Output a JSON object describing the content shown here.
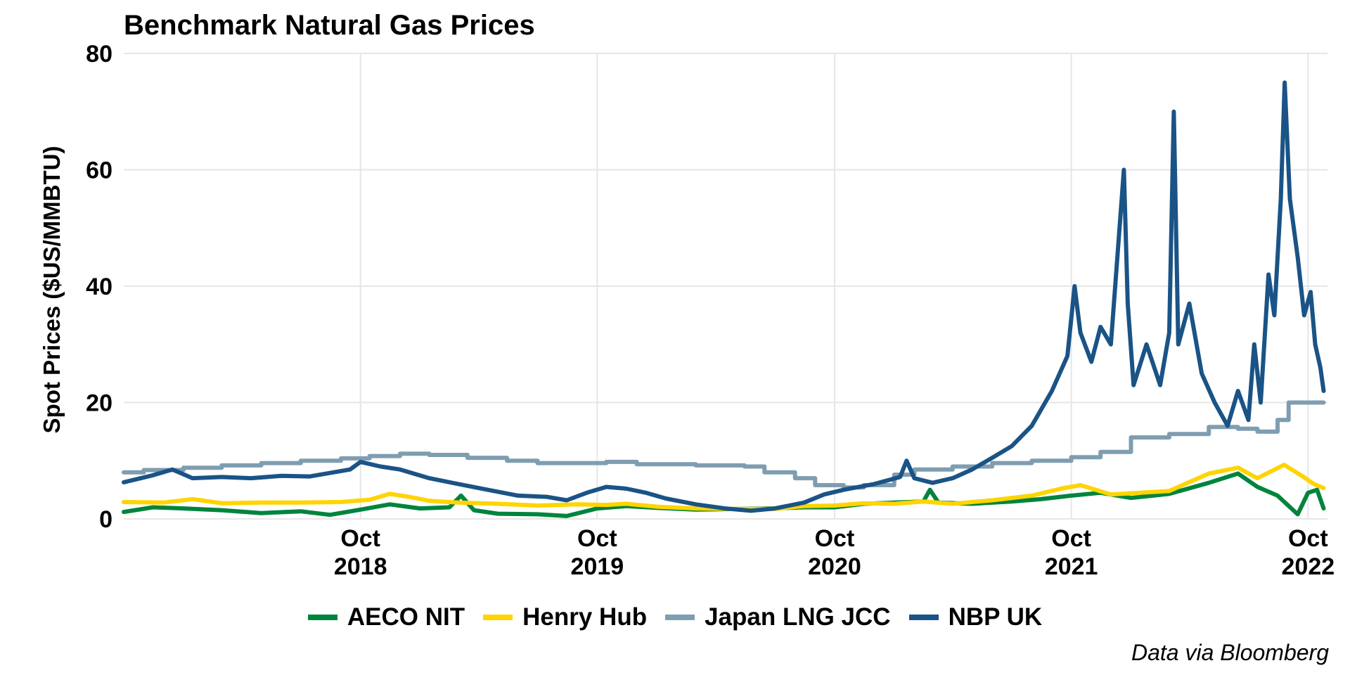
{
  "chart_data": {
    "type": "line",
    "title": "Benchmark Natural Gas Prices",
    "ylabel": "Spot Prices ($US/MMBTU)",
    "xlabel": "",
    "ylim": [
      0,
      80
    ],
    "yticks": [
      0,
      20,
      40,
      60,
      80
    ],
    "xlim": [
      "2017-10-01",
      "2022-10-31"
    ],
    "xticks": [
      {
        "date": "2018-10-01",
        "label": "Oct\n2018"
      },
      {
        "date": "2019-10-01",
        "label": "Oct\n2019"
      },
      {
        "date": "2020-10-01",
        "label": "Oct\n2020"
      },
      {
        "date": "2021-10-01",
        "label": "Oct\n2021"
      },
      {
        "date": "2022-10-01",
        "label": "Oct\n2022"
      }
    ],
    "grid": true,
    "legend_position": "bottom",
    "caption": "Data via Bloomberg",
    "series": [
      {
        "name": "AECO NIT",
        "color": "#00843D",
        "step": false,
        "points": [
          [
            "2017-10-01",
            1.2
          ],
          [
            "2017-11-15",
            2.0
          ],
          [
            "2018-01-01",
            1.8
          ],
          [
            "2018-03-01",
            1.5
          ],
          [
            "2018-05-01",
            1.0
          ],
          [
            "2018-07-01",
            1.3
          ],
          [
            "2018-08-15",
            0.7
          ],
          [
            "2018-10-01",
            1.6
          ],
          [
            "2018-11-15",
            2.5
          ],
          [
            "2019-01-01",
            1.8
          ],
          [
            "2019-02-15",
            2.0
          ],
          [
            "2019-03-05",
            4.0
          ],
          [
            "2019-03-25",
            1.5
          ],
          [
            "2019-05-01",
            0.9
          ],
          [
            "2019-07-01",
            0.8
          ],
          [
            "2019-08-15",
            0.5
          ],
          [
            "2019-10-01",
            1.8
          ],
          [
            "2019-11-15",
            2.2
          ],
          [
            "2020-01-01",
            1.9
          ],
          [
            "2020-03-01",
            1.6
          ],
          [
            "2020-05-01",
            1.7
          ],
          [
            "2020-07-01",
            1.8
          ],
          [
            "2020-08-15",
            2.0
          ],
          [
            "2020-10-01",
            2.0
          ],
          [
            "2020-11-15",
            2.6
          ],
          [
            "2021-01-01",
            2.8
          ],
          [
            "2021-02-15",
            3.0
          ],
          [
            "2021-02-25",
            5.0
          ],
          [
            "2021-03-10",
            2.8
          ],
          [
            "2021-05-01",
            2.6
          ],
          [
            "2021-07-01",
            3.0
          ],
          [
            "2021-08-15",
            3.4
          ],
          [
            "2021-10-01",
            4.0
          ],
          [
            "2021-11-15",
            4.5
          ],
          [
            "2022-01-01",
            3.6
          ],
          [
            "2022-03-01",
            4.3
          ],
          [
            "2022-05-01",
            6.2
          ],
          [
            "2022-06-15",
            7.8
          ],
          [
            "2022-07-15",
            5.5
          ],
          [
            "2022-08-15",
            4.0
          ],
          [
            "2022-09-15",
            0.8
          ],
          [
            "2022-10-01",
            4.5
          ],
          [
            "2022-10-15",
            5.0
          ],
          [
            "2022-10-25",
            1.8
          ]
        ]
      },
      {
        "name": "Henry Hub",
        "color": "#FFD400",
        "step": false,
        "points": [
          [
            "2017-10-01",
            2.9
          ],
          [
            "2017-12-01",
            2.8
          ],
          [
            "2018-01-15",
            3.4
          ],
          [
            "2018-03-01",
            2.7
          ],
          [
            "2018-05-01",
            2.8
          ],
          [
            "2018-07-01",
            2.8
          ],
          [
            "2018-09-01",
            2.9
          ],
          [
            "2018-10-15",
            3.3
          ],
          [
            "2018-11-15",
            4.3
          ],
          [
            "2018-12-15",
            3.8
          ],
          [
            "2019-01-15",
            3.1
          ],
          [
            "2019-03-01",
            2.8
          ],
          [
            "2019-05-01",
            2.6
          ],
          [
            "2019-07-01",
            2.3
          ],
          [
            "2019-09-01",
            2.5
          ],
          [
            "2019-10-15",
            2.4
          ],
          [
            "2019-11-15",
            2.6
          ],
          [
            "2020-01-01",
            2.1
          ],
          [
            "2020-03-01",
            1.8
          ],
          [
            "2020-05-01",
            1.7
          ],
          [
            "2020-07-01",
            1.7
          ],
          [
            "2020-08-15",
            2.2
          ],
          [
            "2020-10-01",
            2.3
          ],
          [
            "2020-11-15",
            2.7
          ],
          [
            "2021-01-01",
            2.6
          ],
          [
            "2021-02-15",
            3.0
          ],
          [
            "2021-04-01",
            2.6
          ],
          [
            "2021-06-01",
            3.2
          ],
          [
            "2021-08-01",
            4.0
          ],
          [
            "2021-09-15",
            5.2
          ],
          [
            "2021-10-15",
            5.8
          ],
          [
            "2021-12-01",
            4.2
          ],
          [
            "2022-01-15",
            4.5
          ],
          [
            "2022-03-01",
            4.8
          ],
          [
            "2022-05-01",
            7.8
          ],
          [
            "2022-06-15",
            8.8
          ],
          [
            "2022-07-15",
            7.0
          ],
          [
            "2022-08-25",
            9.3
          ],
          [
            "2022-09-20",
            7.5
          ],
          [
            "2022-10-10",
            6.0
          ],
          [
            "2022-10-25",
            5.3
          ]
        ]
      },
      {
        "name": "Japan LNG JCC",
        "color": "#7F9DB0",
        "step": true,
        "points": [
          [
            "2017-10-01",
            8.0
          ],
          [
            "2017-11-01",
            8.4
          ],
          [
            "2018-01-01",
            8.8
          ],
          [
            "2018-03-01",
            9.2
          ],
          [
            "2018-05-01",
            9.6
          ],
          [
            "2018-07-01",
            10.0
          ],
          [
            "2018-09-01",
            10.4
          ],
          [
            "2018-10-15",
            10.8
          ],
          [
            "2018-12-01",
            11.2
          ],
          [
            "2019-01-15",
            11.0
          ],
          [
            "2019-03-15",
            10.5
          ],
          [
            "2019-05-15",
            10.0
          ],
          [
            "2019-07-01",
            9.6
          ],
          [
            "2019-10-15",
            9.8
          ],
          [
            "2019-12-01",
            9.4
          ],
          [
            "2020-03-01",
            9.2
          ],
          [
            "2020-05-15",
            9.0
          ],
          [
            "2020-06-15",
            8.0
          ],
          [
            "2020-08-01",
            7.0
          ],
          [
            "2020-09-01",
            5.8
          ],
          [
            "2020-10-15",
            5.4
          ],
          [
            "2020-11-15",
            5.8
          ],
          [
            "2021-01-01",
            7.6
          ],
          [
            "2021-02-01",
            8.5
          ],
          [
            "2021-04-01",
            9.0
          ],
          [
            "2021-06-01",
            9.6
          ],
          [
            "2021-08-01",
            10.0
          ],
          [
            "2021-10-01",
            10.6
          ],
          [
            "2021-11-15",
            11.5
          ],
          [
            "2022-01-01",
            14.0
          ],
          [
            "2022-03-01",
            14.6
          ],
          [
            "2022-05-01",
            15.8
          ],
          [
            "2022-06-15",
            15.5
          ],
          [
            "2022-07-15",
            15.0
          ],
          [
            "2022-08-15",
            17.0
          ],
          [
            "2022-09-01",
            20.0
          ],
          [
            "2022-10-25",
            20.0
          ]
        ]
      },
      {
        "name": "NBP UK",
        "color": "#1A5386",
        "step": false,
        "points": [
          [
            "2017-10-01",
            6.3
          ],
          [
            "2017-11-15",
            7.5
          ],
          [
            "2017-12-15",
            8.5
          ],
          [
            "2018-01-15",
            7.0
          ],
          [
            "2018-03-01",
            7.2
          ],
          [
            "2018-04-15",
            7.0
          ],
          [
            "2018-06-01",
            7.4
          ],
          [
            "2018-07-15",
            7.3
          ],
          [
            "2018-09-15",
            8.5
          ],
          [
            "2018-10-01",
            9.8
          ],
          [
            "2018-11-01",
            9.0
          ],
          [
            "2018-12-01",
            8.5
          ],
          [
            "2019-01-15",
            7.0
          ],
          [
            "2019-03-01",
            6.0
          ],
          [
            "2019-04-15",
            5.0
          ],
          [
            "2019-06-01",
            4.0
          ],
          [
            "2019-07-15",
            3.8
          ],
          [
            "2019-08-15",
            3.2
          ],
          [
            "2019-09-15",
            4.5
          ],
          [
            "2019-10-15",
            5.5
          ],
          [
            "2019-11-15",
            5.2
          ],
          [
            "2019-12-15",
            4.5
          ],
          [
            "2020-01-15",
            3.5
          ],
          [
            "2020-03-01",
            2.5
          ],
          [
            "2020-04-15",
            1.8
          ],
          [
            "2020-05-25",
            1.4
          ],
          [
            "2020-07-01",
            1.8
          ],
          [
            "2020-08-15",
            2.8
          ],
          [
            "2020-09-15",
            4.2
          ],
          [
            "2020-10-15",
            5.0
          ],
          [
            "2020-12-01",
            6.0
          ],
          [
            "2021-01-10",
            7.2
          ],
          [
            "2021-01-20",
            10.0
          ],
          [
            "2021-02-01",
            7.0
          ],
          [
            "2021-03-01",
            6.2
          ],
          [
            "2021-04-01",
            7.0
          ],
          [
            "2021-05-01",
            8.5
          ],
          [
            "2021-06-01",
            10.5
          ],
          [
            "2021-07-01",
            12.5
          ],
          [
            "2021-08-01",
            16.0
          ],
          [
            "2021-09-01",
            22.0
          ],
          [
            "2021-09-25",
            28.0
          ],
          [
            "2021-10-06",
            40.0
          ],
          [
            "2021-10-15",
            32.0
          ],
          [
            "2021-11-01",
            27.0
          ],
          [
            "2021-11-15",
            33.0
          ],
          [
            "2021-12-01",
            30.0
          ],
          [
            "2021-12-21",
            60.0
          ],
          [
            "2021-12-27",
            37.0
          ],
          [
            "2022-01-05",
            23.0
          ],
          [
            "2022-01-25",
            30.0
          ],
          [
            "2022-02-15",
            23.0
          ],
          [
            "2022-03-01",
            32.0
          ],
          [
            "2022-03-08",
            70.0
          ],
          [
            "2022-03-15",
            30.0
          ],
          [
            "2022-04-01",
            37.0
          ],
          [
            "2022-04-20",
            25.0
          ],
          [
            "2022-05-10",
            20.0
          ],
          [
            "2022-05-30",
            16.0
          ],
          [
            "2022-06-15",
            22.0
          ],
          [
            "2022-07-01",
            17.0
          ],
          [
            "2022-07-10",
            30.0
          ],
          [
            "2022-07-20",
            20.0
          ],
          [
            "2022-08-01",
            42.0
          ],
          [
            "2022-08-10",
            35.0
          ],
          [
            "2022-08-20",
            55.0
          ],
          [
            "2022-08-26",
            75.0
          ],
          [
            "2022-09-03",
            55.0
          ],
          [
            "2022-09-15",
            45.0
          ],
          [
            "2022-09-25",
            35.0
          ],
          [
            "2022-10-05",
            39.0
          ],
          [
            "2022-10-12",
            30.0
          ],
          [
            "2022-10-20",
            26.0
          ],
          [
            "2022-10-25",
            22.0
          ]
        ]
      }
    ]
  }
}
